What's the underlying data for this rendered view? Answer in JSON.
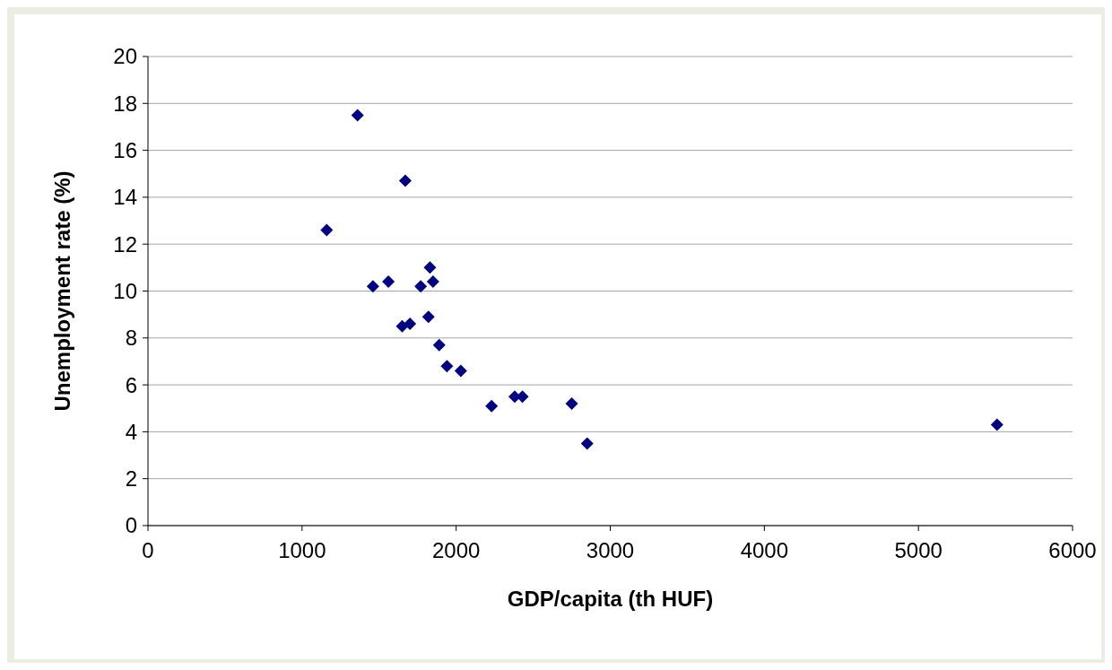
{
  "chart_data": {
    "type": "scatter",
    "xlabel": "GDP/capita (th HUF)",
    "ylabel": "Unemployment rate (%)",
    "x": [
      1160,
      1360,
      1670,
      1460,
      1560,
      1770,
      1830,
      1850,
      1820,
      1650,
      1700,
      1890,
      1940,
      2030,
      2230,
      2380,
      2430,
      2750,
      2850,
      5510
    ],
    "series": [
      {
        "color": "#000080",
        "values": [
          12.6,
          17.5,
          14.7,
          10.2,
          10.4,
          10.2,
          11.0,
          10.4,
          8.9,
          8.5,
          8.6,
          7.7,
          6.8,
          6.6,
          5.1,
          5.5,
          5.5,
          5.2,
          3.5,
          4.3
        ]
      }
    ],
    "xlim": [
      0,
      6000
    ],
    "xticks": [
      0,
      1000,
      2000,
      3000,
      4000,
      5000,
      6000
    ],
    "ylim": [
      0,
      20
    ],
    "yticks": [
      0,
      2,
      4,
      6,
      8,
      10,
      12,
      14,
      16,
      18,
      20
    ],
    "grid": "y",
    "marker": "diamond"
  }
}
